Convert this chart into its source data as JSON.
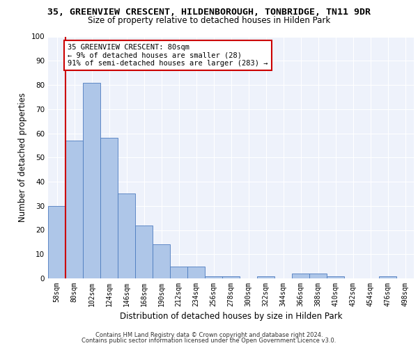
{
  "title_line1": "35, GREENVIEW CRESCENT, HILDENBOROUGH, TONBRIDGE, TN11 9DR",
  "title_line2": "Size of property relative to detached houses in Hilden Park",
  "xlabel": "Distribution of detached houses by size in Hilden Park",
  "ylabel": "Number of detached properties",
  "footer_line1": "Contains HM Land Registry data © Crown copyright and database right 2024.",
  "footer_line2": "Contains public sector information licensed under the Open Government Licence v3.0.",
  "categories": [
    "58sqm",
    "80sqm",
    "102sqm",
    "124sqm",
    "146sqm",
    "168sqm",
    "190sqm",
    "212sqm",
    "234sqm",
    "256sqm",
    "278sqm",
    "300sqm",
    "322sqm",
    "344sqm",
    "366sqm",
    "388sqm",
    "410sqm",
    "432sqm",
    "454sqm",
    "476sqm",
    "498sqm"
  ],
  "values": [
    30,
    57,
    81,
    58,
    35,
    22,
    14,
    5,
    5,
    1,
    1,
    0,
    1,
    0,
    2,
    2,
    1,
    0,
    0,
    1,
    0
  ],
  "bar_color": "#aec6e8",
  "bar_edge_color": "#4c7bbf",
  "reference_line_x": 1,
  "reference_line_color": "#cc0000",
  "annotation_line1": "35 GREENVIEW CRESCENT: 80sqm",
  "annotation_line2": "← 9% of detached houses are smaller (28)",
  "annotation_line3": "91% of semi-detached houses are larger (283) →",
  "annotation_box_edge_color": "#cc0000",
  "annotation_fontsize": 7.5,
  "ylim": [
    0,
    100
  ],
  "yticks": [
    0,
    10,
    20,
    30,
    40,
    50,
    60,
    70,
    80,
    90,
    100
  ],
  "background_color": "#eef2fb",
  "title1_fontsize": 9.5,
  "title2_fontsize": 8.5,
  "xlabel_fontsize": 8.5,
  "ylabel_fontsize": 8.5,
  "footer_fontsize": 6.0,
  "tick_fontsize": 7.0,
  "ytick_fontsize": 7.5
}
